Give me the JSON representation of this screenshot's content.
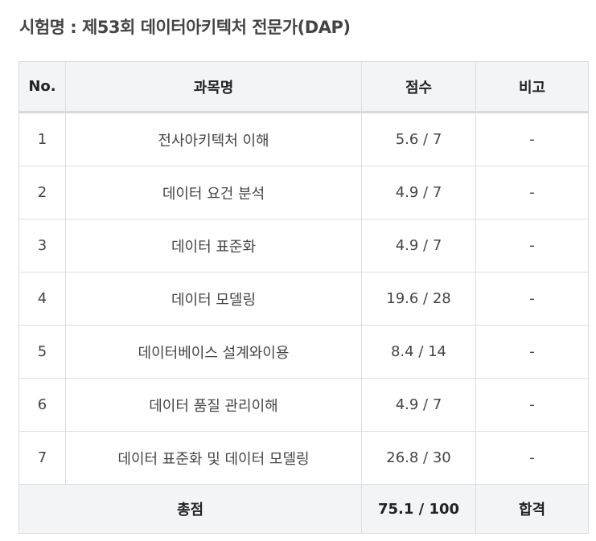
{
  "page": {
    "title": "시험명 : 제53회 데이터아키텍처 전문가(DAP)"
  },
  "table": {
    "headers": {
      "no": "No.",
      "subject": "과목명",
      "score": "점수",
      "note": "비고"
    },
    "rows": [
      {
        "no": "1",
        "subject": "전사아키텍처 이해",
        "score": "5.6 / 7",
        "note": "-"
      },
      {
        "no": "2",
        "subject": "데이터 요건 분석",
        "score": "4.9 / 7",
        "note": "-"
      },
      {
        "no": "3",
        "subject": "데이터 표준화",
        "score": "4.9 / 7",
        "note": "-"
      },
      {
        "no": "4",
        "subject": "데이터 모델링",
        "score": "19.6 / 28",
        "note": "-"
      },
      {
        "no": "5",
        "subject": "데이터베이스 설계와이용",
        "score": "8.4 / 14",
        "note": "-"
      },
      {
        "no": "6",
        "subject": "데이터 품질 관리이해",
        "score": "4.9 / 7",
        "note": "-"
      },
      {
        "no": "7",
        "subject": "데이터 표준화 및 데이터 모델링",
        "score": "26.8 / 30",
        "note": "-"
      }
    ],
    "total": {
      "label": "총점",
      "score": "75.1 / 100",
      "result": "합격"
    }
  },
  "colors": {
    "header_bg": "#f3f4f6",
    "border": "#dddddd",
    "title_text": "#444444"
  }
}
